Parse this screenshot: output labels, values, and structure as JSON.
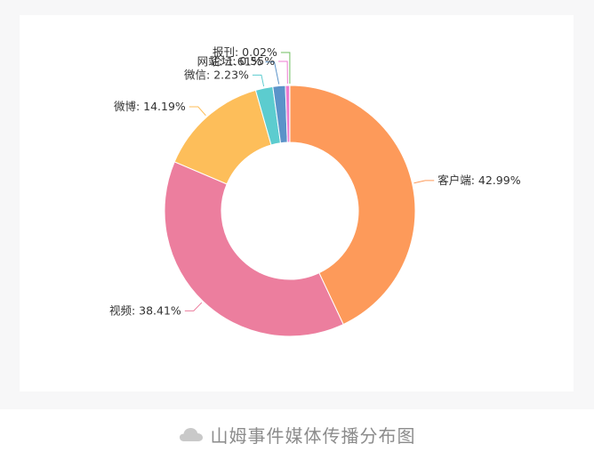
{
  "caption": {
    "text": "山姆事件媒体传播分布图",
    "icon": "cloud-icon"
  },
  "colors": {
    "page_background": "#f7f7f8",
    "card_background": "#ffffff",
    "caption_text": "#8c8c8c",
    "icon": "#c9c9c9"
  },
  "chart_data": {
    "type": "pie",
    "variant": "donut",
    "title": "",
    "start": "top (12 o'clock), clockwise",
    "slices": [
      {
        "name": "客户端",
        "value": 42.99,
        "label": "客户端: 42.99%",
        "color": "#fd9a5a"
      },
      {
        "name": "视频",
        "value": 38.41,
        "label": "视频: 38.41%",
        "color": "#ec7e9e"
      },
      {
        "name": "微博",
        "value": 14.19,
        "label": "微博: 14.19%",
        "color": "#fdbe5a"
      },
      {
        "name": "微信",
        "value": 2.23,
        "label": "微信: 2.23%",
        "color": "#5ccccf"
      },
      {
        "name": "网站",
        "value": 1.61,
        "label": "网站: 1.61%",
        "color": "#5b93c9"
      },
      {
        "name": "论坛",
        "value": 0.55,
        "label": "论坛: 0.55%",
        "color": "#ed7bd0"
      },
      {
        "name": "报刊",
        "value": 0.02,
        "label": "报刊: 0.02%",
        "color": "#6fbf5f"
      }
    ]
  }
}
